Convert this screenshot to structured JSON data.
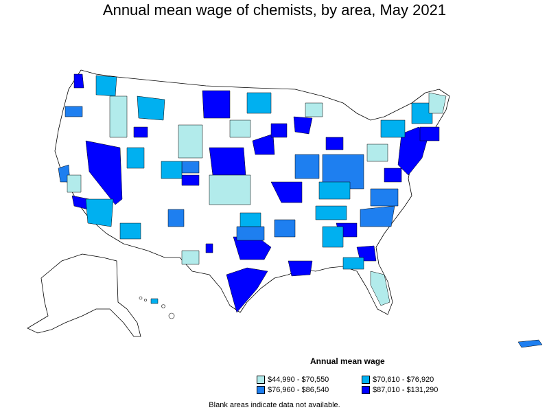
{
  "title": "Annual mean wage of chemists, by area, May 2021",
  "legend": {
    "title": "Annual mean wage",
    "items": [
      {
        "label": "$44,990 - $70,550",
        "color": "#b2ebeb"
      },
      {
        "label": "$70,610 - $76,920",
        "color": "#00b0f0"
      },
      {
        "label": "$76,960 - $86,540",
        "color": "#1e7ff0"
      },
      {
        "label": "$87,010 - $131,290",
        "color": "#0000ff"
      }
    ]
  },
  "footnote": "Blank areas indicate data not available."
}
